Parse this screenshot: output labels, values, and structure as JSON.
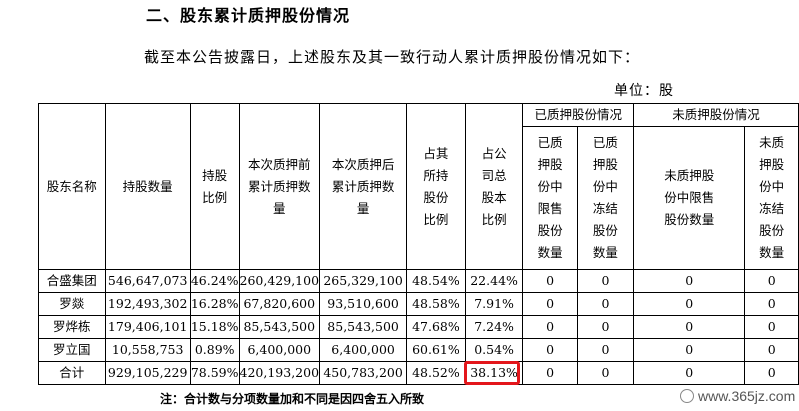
{
  "heading": "二、股东累计质押股份情况",
  "intro": "截至本公告披露日，上述股东及其一致行动人累计质押股份情况如下：",
  "unit": "单位：股",
  "headers": {
    "shareholder": "股东名称",
    "holding": "持股数量",
    "holding_ratio": "持股比例",
    "pre_pledge": "本次质押前累计质押数量",
    "post_pledge": "本次质押后累计质押数量",
    "pct_own": "占其所持股份比例",
    "pct_total": "占公司总股本比例",
    "pledged_group": "已质押股份情况",
    "unpledged_group": "未质押股份情况",
    "pledged_restricted": "已质押股份中限售股份数量",
    "pledged_frozen": "已质押股份中冻结股份数量",
    "unpledged_restricted": "未质押股份中限售股份数量",
    "unpledged_frozen": "未质押股份中冻结股份数量"
  },
  "rows": [
    {
      "name": "合盛集团",
      "holding": "546,647,073",
      "ratio": "46.24%",
      "pre": "260,429,100",
      "post": "265,329,100",
      "pct_own": "48.54%",
      "pct_total": "22.44%",
      "p_restricted": "0",
      "p_frozen": "0",
      "u_restricted": "0",
      "u_frozen": "0"
    },
    {
      "name": "罗燚",
      "holding": "192,493,302",
      "ratio": "16.28%",
      "pre": "67,820,600",
      "post": "93,510,600",
      "pct_own": "48.58%",
      "pct_total": "7.91%",
      "p_restricted": "0",
      "p_frozen": "0",
      "u_restricted": "0",
      "u_frozen": "0"
    },
    {
      "name": "罗烨栋",
      "holding": "179,406,101",
      "ratio": "15.18%",
      "pre": "85,543,500",
      "post": "85,543,500",
      "pct_own": "47.68%",
      "pct_total": "7.24%",
      "p_restricted": "0",
      "p_frozen": "0",
      "u_restricted": "0",
      "u_frozen": "0"
    },
    {
      "name": "罗立国",
      "holding": "10,558,753",
      "ratio": "0.89%",
      "pre": "6,400,000",
      "post": "6,400,000",
      "pct_own": "60.61%",
      "pct_total": "0.54%",
      "p_restricted": "0",
      "p_frozen": "0",
      "u_restricted": "0",
      "u_frozen": "0"
    },
    {
      "name": "合计",
      "holding": "929,105,229",
      "ratio": "78.59%",
      "pre": "420,193,200",
      "post": "450,783,200",
      "pct_own": "48.52%",
      "pct_total": "38.13%",
      "p_restricted": "0",
      "p_frozen": "0",
      "u_restricted": "0",
      "u_frozen": "0"
    }
  ],
  "note": "注：合计数与分项数量加和不同是因四舍五入所致",
  "watermark": "www.365jz.com",
  "highlight_color": "#e3161b"
}
